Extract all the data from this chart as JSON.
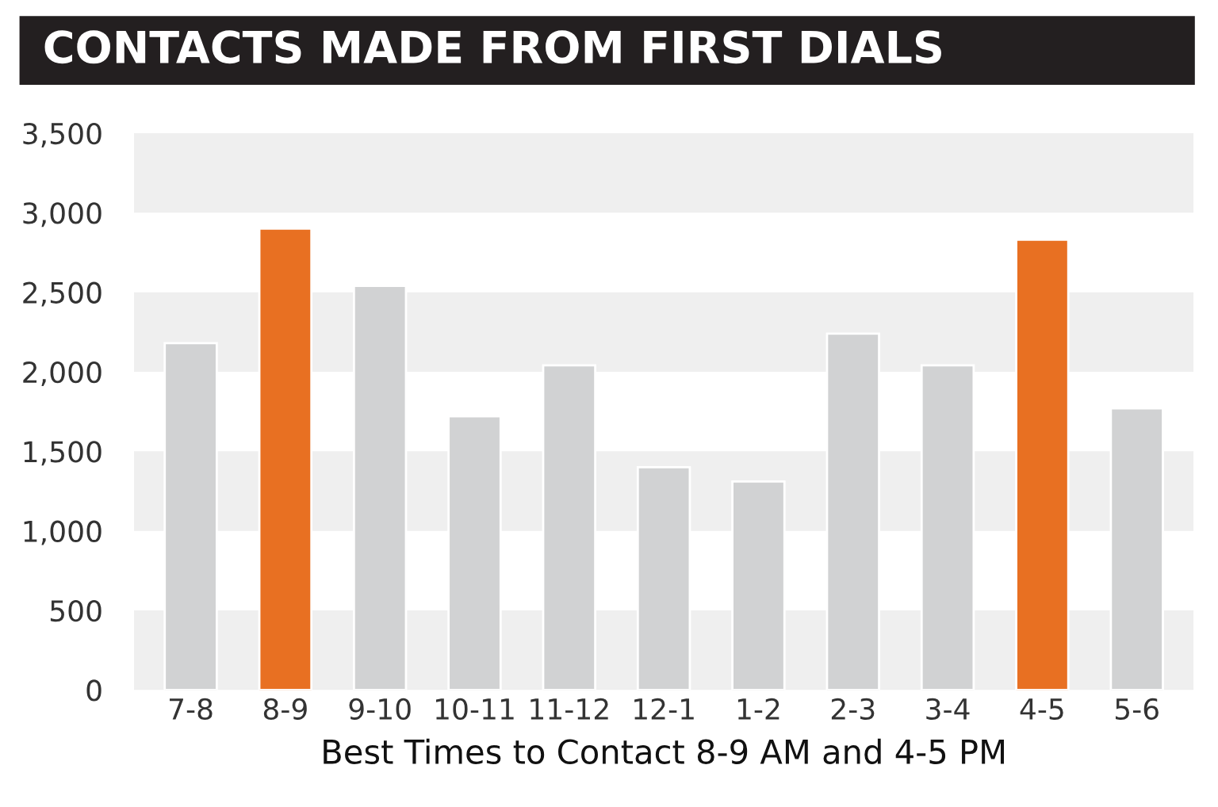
{
  "chart_data": {
    "type": "bar",
    "title": "CONTACTS MADE FROM FIRST DIALS",
    "xlabel": "Best Times to Contact 8-9 AM and 4-5 PM",
    "categories": [
      "7-8",
      "8-9",
      "9-10",
      "10-11",
      "11-12",
      "12-1",
      "1-2",
      "2-3",
      "3-4",
      "4-5",
      "5-6"
    ],
    "values": [
      2180,
      2900,
      2540,
      1720,
      2040,
      1400,
      1310,
      2240,
      2040,
      2830,
      1770
    ],
    "colors": [
      "#d1d2d3",
      "#e87022",
      "#d1d2d3",
      "#d1d2d3",
      "#d1d2d3",
      "#d1d2d3",
      "#d1d2d3",
      "#d1d2d3",
      "#d1d2d3",
      "#e87022",
      "#d1d2d3"
    ],
    "ylim": [
      0,
      3500
    ],
    "yticks": [
      {
        "value": 0,
        "label": "0"
      },
      {
        "value": 500,
        "label": "500"
      },
      {
        "value": 1000,
        "label": "1,000"
      },
      {
        "value": 1500,
        "label": "1,500"
      },
      {
        "value": 2000,
        "label": "2,000"
      },
      {
        "value": 2500,
        "label": "2,500"
      },
      {
        "value": 3000,
        "label": "3,000"
      },
      {
        "value": 3500,
        "label": "3,500"
      }
    ],
    "bands": [
      {
        "axis": "y",
        "from": 0,
        "to": 500,
        "color": "#efefef"
      },
      {
        "axis": "y",
        "from": 1000,
        "to": 1500,
        "color": "#efefef"
      },
      {
        "axis": "y",
        "from": 2000,
        "to": 2500,
        "color": "#efefef"
      },
      {
        "axis": "y",
        "from": 3000,
        "to": 3500,
        "color": "#efefef"
      }
    ],
    "grid": false,
    "legend": false
  }
}
